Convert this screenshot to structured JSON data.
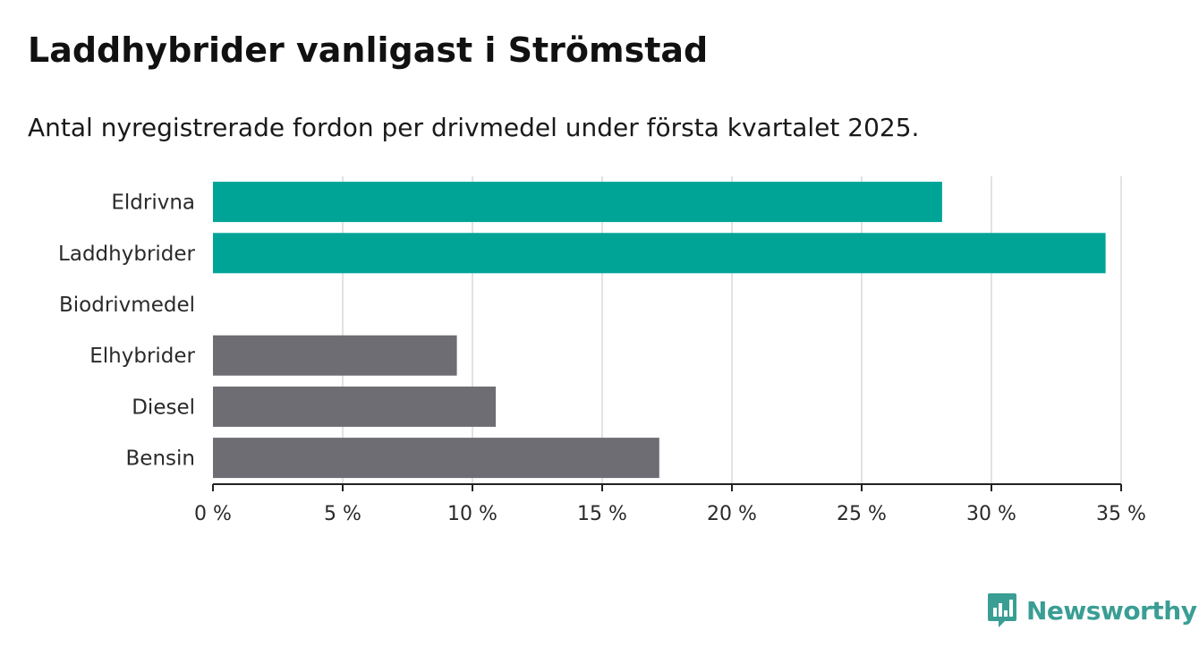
{
  "title": "Laddhybrider vanligast i Strömstad",
  "subtitle": "Antal nyregistrerade fordon per drivmedel under första kvartalet 2025.",
  "brand": {
    "name": "Newsworthy",
    "icon": "newsworthy-logo-icon"
  },
  "colors": {
    "highlight": "#00a497",
    "default": "#6e6d73",
    "grid": "#d9d9d9",
    "axis": "#222222"
  },
  "chart_data": {
    "type": "bar",
    "orientation": "horizontal",
    "title": "Laddhybrider vanligast i Strömstad",
    "subtitle": "Antal nyregistrerade fordon per drivmedel under första kvartalet 2025.",
    "xlabel": "",
    "ylabel": "",
    "categories": [
      "Eldrivna",
      "Laddhybrider",
      "Biodrivmedel",
      "Elhybrider",
      "Diesel",
      "Bensin"
    ],
    "values": [
      28.1,
      34.4,
      0,
      9.4,
      10.9,
      17.2
    ],
    "highlight": [
      true,
      true,
      false,
      false,
      false,
      false
    ],
    "xlim": [
      0,
      35
    ],
    "xticks": [
      0,
      5,
      10,
      15,
      20,
      25,
      30,
      35
    ],
    "tick_labels": [
      "0 %",
      "5 %",
      "10 %",
      "15 %",
      "20 %",
      "25 %",
      "30 %",
      "35 %"
    ],
    "unit": "%",
    "grid": true,
    "legend": "none"
  }
}
